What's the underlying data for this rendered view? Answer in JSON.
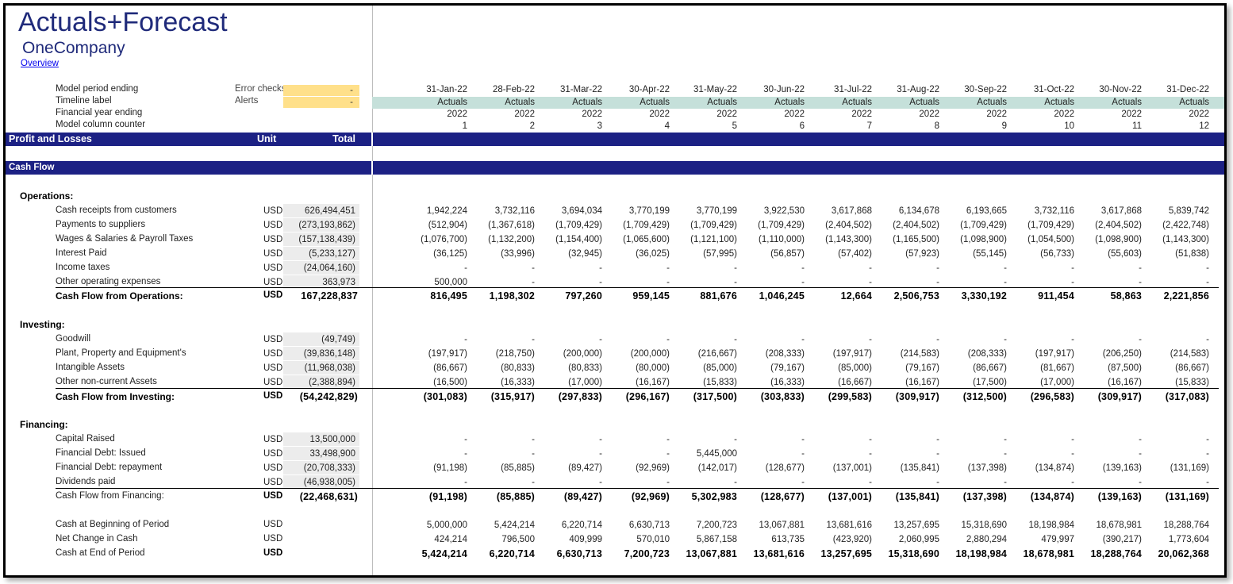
{
  "title": "Actuals+Forecast",
  "company": "OneCompany",
  "overview_link": "Overview",
  "header": {
    "labels": [
      "Model period ending",
      "Timeline label",
      "Financial year ending",
      "Model column counter"
    ],
    "checks": [
      {
        "label": "Error checks",
        "value": "-"
      },
      {
        "label": "Alerts",
        "value": "-"
      }
    ],
    "periods": [
      "31-Jan-22",
      "28-Feb-22",
      "31-Mar-22",
      "30-Apr-22",
      "31-May-22",
      "30-Jun-22",
      "31-Jul-22",
      "31-Aug-22",
      "30-Sep-22",
      "31-Oct-22",
      "30-Nov-22",
      "31-Dec-22"
    ],
    "timeline": [
      "Actuals",
      "Actuals",
      "Actuals",
      "Actuals",
      "Actuals",
      "Actuals",
      "Actuals",
      "Actuals",
      "Actuals",
      "Actuals",
      "Actuals",
      "Actuals"
    ],
    "fy": [
      "2022",
      "2022",
      "2022",
      "2022",
      "2022",
      "2022",
      "2022",
      "2022",
      "2022",
      "2022",
      "2022",
      "2022"
    ],
    "counter": [
      "1",
      "2",
      "3",
      "4",
      "5",
      "6",
      "7",
      "8",
      "9",
      "10",
      "11",
      "12"
    ]
  },
  "bands": {
    "pl": {
      "label": "Profit and Losses",
      "unit": "Unit",
      "total": "Total"
    },
    "cf": {
      "label": "Cash Flow"
    }
  },
  "sections": [
    {
      "name": "Operations:",
      "rows": [
        {
          "label": "Cash receipts from customers",
          "unit": "USD",
          "total": "626,494,451",
          "values": [
            "1,942,224",
            "3,732,116",
            "3,694,034",
            "3,770,199",
            "3,770,199",
            "3,922,530",
            "3,617,868",
            "6,134,678",
            "6,193,665",
            "3,732,116",
            "3,617,868",
            "5,839,742"
          ]
        },
        {
          "label": "Payments to suppliers",
          "unit": "USD",
          "total": "(273,193,862)",
          "values": [
            "(512,904)",
            "(1,367,618)",
            "(1,709,429)",
            "(1,709,429)",
            "(1,709,429)",
            "(1,709,429)",
            "(2,404,502)",
            "(2,404,502)",
            "(1,709,429)",
            "(1,709,429)",
            "(2,404,502)",
            "(2,422,748)"
          ]
        },
        {
          "label": "Wages & Salaries & Payroll Taxes",
          "unit": "USD",
          "total": "(157,138,439)",
          "values": [
            "(1,076,700)",
            "(1,132,200)",
            "(1,154,400)",
            "(1,065,600)",
            "(1,121,100)",
            "(1,110,000)",
            "(1,143,300)",
            "(1,165,500)",
            "(1,098,900)",
            "(1,054,500)",
            "(1,098,900)",
            "(1,143,300)"
          ]
        },
        {
          "label": "Interest Paid",
          "unit": "USD",
          "total": "(5,233,127)",
          "values": [
            "(36,125)",
            "(33,996)",
            "(32,945)",
            "(36,025)",
            "(57,995)",
            "(56,857)",
            "(57,402)",
            "(57,923)",
            "(55,145)",
            "(56,733)",
            "(55,603)",
            "(51,838)"
          ]
        },
        {
          "label": "Income taxes",
          "unit": "USD",
          "total": "(24,064,160)",
          "values": [
            "-",
            "-",
            "-",
            "-",
            "-",
            "-",
            "-",
            "-",
            "-",
            "-",
            "-",
            "-"
          ]
        },
        {
          "label": "Other operating expenses",
          "unit": "USD",
          "total": "363,973",
          "values": [
            "500,000",
            "-",
            "-",
            "-",
            "-",
            "-",
            "-",
            "-",
            "-",
            "-",
            "-",
            "-"
          ]
        }
      ],
      "total_row": {
        "label": "Cash Flow from Operations:",
        "unit": "USD",
        "total": "167,228,837",
        "values": [
          "816,495",
          "1,198,302",
          "797,260",
          "959,145",
          "881,676",
          "1,046,245",
          "12,664",
          "2,506,753",
          "3,330,192",
          "911,454",
          "58,863",
          "2,221,856"
        ]
      }
    },
    {
      "name": "Investing:",
      "rows": [
        {
          "label": "Goodwill",
          "unit": "USD",
          "total": "(49,749)",
          "values": [
            "-",
            "-",
            "-",
            "-",
            "-",
            "-",
            "-",
            "-",
            "-",
            "-",
            "-",
            "-"
          ]
        },
        {
          "label": "Plant, Property and Equipment's",
          "unit": "USD",
          "total": "(39,836,148)",
          "values": [
            "(197,917)",
            "(218,750)",
            "(200,000)",
            "(200,000)",
            "(216,667)",
            "(208,333)",
            "(197,917)",
            "(214,583)",
            "(208,333)",
            "(197,917)",
            "(206,250)",
            "(214,583)"
          ]
        },
        {
          "label": "Intangible Assets",
          "unit": "USD",
          "total": "(11,968,038)",
          "values": [
            "(86,667)",
            "(80,833)",
            "(80,833)",
            "(80,000)",
            "(85,000)",
            "(79,167)",
            "(85,000)",
            "(79,167)",
            "(86,667)",
            "(81,667)",
            "(87,500)",
            "(86,667)"
          ]
        },
        {
          "label": "Other non-current Assets",
          "unit": "USD",
          "total": "(2,388,894)",
          "values": [
            "(16,500)",
            "(16,333)",
            "(17,000)",
            "(16,167)",
            "(15,833)",
            "(16,333)",
            "(16,667)",
            "(16,167)",
            "(17,500)",
            "(17,000)",
            "(16,167)",
            "(15,833)"
          ]
        }
      ],
      "total_row": {
        "label": "Cash Flow from Investing:",
        "unit": "USD",
        "total": "(54,242,829)",
        "values": [
          "(301,083)",
          "(315,917)",
          "(297,833)",
          "(296,167)",
          "(317,500)",
          "(303,833)",
          "(299,583)",
          "(309,917)",
          "(312,500)",
          "(296,583)",
          "(309,917)",
          "(317,083)"
        ]
      }
    },
    {
      "name": "Financing:",
      "rows": [
        {
          "label": "Capital Raised",
          "unit": "USD",
          "total": "13,500,000",
          "values": [
            "-",
            "-",
            "-",
            "-",
            "-",
            "-",
            "-",
            "-",
            "-",
            "-",
            "-",
            "-"
          ]
        },
        {
          "label": "Financial Debt: Issued",
          "unit": "USD",
          "total": "33,498,900",
          "values": [
            "-",
            "-",
            "-",
            "-",
            "5,445,000",
            "-",
            "-",
            "-",
            "-",
            "-",
            "-",
            "-"
          ]
        },
        {
          "label": "Financial Debt: repayment",
          "unit": "USD",
          "total": "(20,708,333)",
          "values": [
            "(91,198)",
            "(85,885)",
            "(89,427)",
            "(92,969)",
            "(142,017)",
            "(128,677)",
            "(137,001)",
            "(135,841)",
            "(137,398)",
            "(134,874)",
            "(139,163)",
            "(131,169)"
          ]
        },
        {
          "label": "Dividends paid",
          "unit": "USD",
          "total": "(46,938,005)",
          "values": [
            "-",
            "-",
            "-",
            "-",
            "-",
            "-",
            "-",
            "-",
            "-",
            "-",
            "-",
            "-"
          ]
        }
      ],
      "total_row": {
        "label": "Cash Flow from Financing:",
        "unit": "USD",
        "total": "(22,468,631)",
        "values": [
          "(91,198)",
          "(85,885)",
          "(89,427)",
          "(92,969)",
          "5,302,983",
          "(128,677)",
          "(137,001)",
          "(135,841)",
          "(137,398)",
          "(134,874)",
          "(139,163)",
          "(131,169)"
        ]
      }
    }
  ],
  "cash_summary": [
    {
      "label": "Cash at Beginning of Period",
      "unit": "USD",
      "values": [
        "5,000,000",
        "5,424,214",
        "6,220,714",
        "6,630,713",
        "7,200,723",
        "13,067,881",
        "13,681,616",
        "13,257,695",
        "15,318,690",
        "18,198,984",
        "18,678,981",
        "18,288,764"
      ]
    },
    {
      "label": "Net Change in Cash",
      "unit": "USD",
      "values": [
        "424,214",
        "796,500",
        "409,999",
        "570,010",
        "5,867,158",
        "613,735",
        "(423,920)",
        "2,060,995",
        "2,880,294",
        "479,997",
        "(390,217)",
        "1,773,604"
      ]
    },
    {
      "label": "Cash at End of Period",
      "unit": "USD",
      "values": [
        "5,424,214",
        "6,220,714",
        "6,630,713",
        "7,200,723",
        "13,067,881",
        "13,681,616",
        "13,257,695",
        "15,318,690",
        "18,198,984",
        "18,678,981",
        "18,288,764",
        "20,062,368"
      ]
    }
  ]
}
